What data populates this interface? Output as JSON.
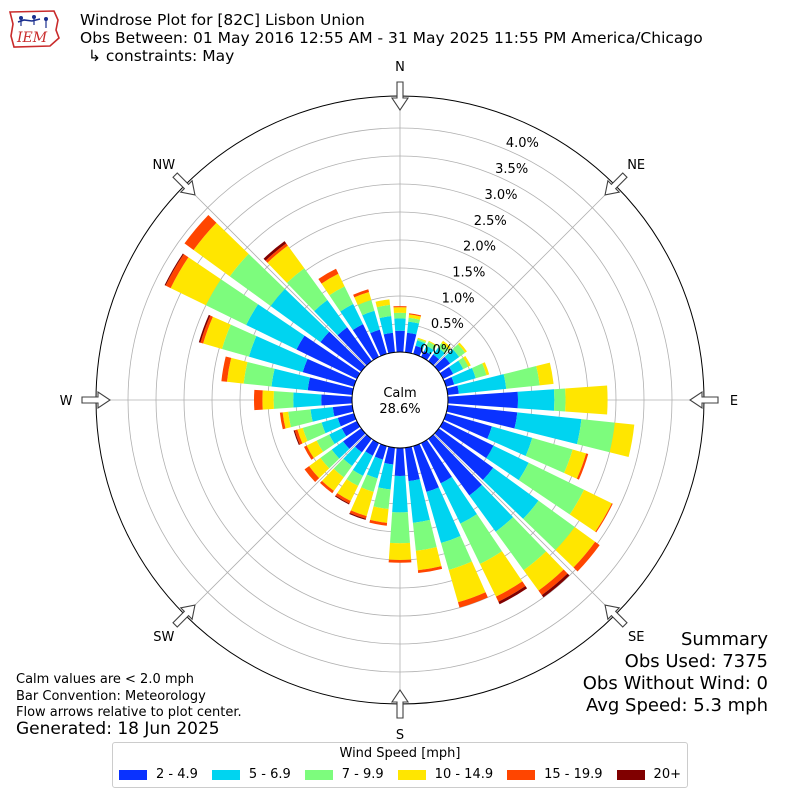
{
  "header": {
    "title": "Windrose Plot for [82C] Lisbon Union",
    "obs_range": "Obs Between: 01 May 2016 12:55 AM - 31 May 2025 11:55 PM America/Chicago",
    "constraints": "↳ constraints: May",
    "logo_text": "IEM"
  },
  "notes": {
    "calm": "Calm values are < 2.0 mph",
    "bar_convention": "Bar Convention: Meteorology",
    "flow": "Flow arrows relative to plot center.",
    "generated": "Generated: 18 Jun 2025"
  },
  "summary": {
    "title": "Summary",
    "obs_used": "Obs Used: 7375",
    "obs_without_wind": "Obs Without Wind: 0",
    "avg_speed": "Avg Speed: 5.3 mph"
  },
  "chart_data": {
    "type": "windrose",
    "calm_label": "Calm",
    "calm_value": "28.6%",
    "radial_ticks": [
      "0.0%",
      "0.5%",
      "1.0%",
      "1.5%",
      "2.0%",
      "2.5%",
      "3.0%",
      "3.5%",
      "4.0%"
    ],
    "radial_max": 4.0,
    "compass": [
      "N",
      "NE",
      "E",
      "SE",
      "S",
      "SW",
      "W",
      "NW"
    ],
    "legend_title": "Wind Speed [mph]",
    "bins": [
      {
        "label": "2 - 4.9",
        "color": "#0a32ff"
      },
      {
        "label": "5 - 6.9",
        "color": "#00d4f0"
      },
      {
        "label": "7 - 9.9",
        "color": "#7dfc7d"
      },
      {
        "label": "10 - 14.9",
        "color": "#ffe600"
      },
      {
        "label": "15 - 19.9",
        "color": "#ff4500"
      },
      {
        "label": "20+",
        "color": "#800000"
      }
    ],
    "direction_step_deg": 10,
    "directions_deg": [
      0,
      10,
      20,
      30,
      40,
      50,
      60,
      70,
      80,
      90,
      100,
      110,
      120,
      130,
      140,
      150,
      160,
      170,
      180,
      190,
      200,
      210,
      220,
      230,
      240,
      250,
      260,
      270,
      280,
      290,
      300,
      310,
      320,
      330,
      340,
      350
    ],
    "cumulative_percent": [
      [
        0.38,
        0.6,
        0.7,
        0.8,
        0.82,
        0.82
      ],
      [
        0.35,
        0.55,
        0.62,
        0.68,
        0.7,
        0.7
      ],
      [
        0.15,
        0.25,
        0.28,
        0.3,
        0.3,
        0.3
      ],
      [
        0.12,
        0.22,
        0.3,
        0.32,
        0.32,
        0.32
      ],
      [
        0.15,
        0.3,
        0.4,
        0.45,
        0.45,
        0.45
      ],
      [
        0.25,
        0.45,
        0.58,
        0.62,
        0.62,
        0.62
      ],
      [
        0.2,
        0.4,
        0.5,
        0.55,
        0.55,
        0.55
      ],
      [
        0.15,
        0.55,
        0.75,
        0.8,
        0.8,
        0.8
      ],
      [
        0.2,
        1.05,
        1.65,
        1.9,
        1.9,
        1.9
      ],
      [
        1.25,
        1.9,
        2.1,
        2.85,
        2.85,
        2.85
      ],
      [
        1.25,
        2.4,
        3.0,
        3.35,
        3.35,
        3.35
      ],
      [
        0.85,
        1.6,
        2.35,
        2.6,
        2.64,
        2.64
      ],
      [
        1.0,
        1.7,
        2.8,
        3.35,
        3.37,
        3.37
      ],
      [
        1.2,
        2.2,
        3.0,
        3.45,
        3.55,
        3.55
      ],
      [
        1.25,
        2.05,
        2.9,
        3.35,
        3.45,
        3.5
      ],
      [
        0.8,
        1.6,
        2.4,
        3.05,
        3.15,
        3.2
      ],
      [
        0.85,
        1.8,
        2.3,
        2.9,
        3.0,
        3.0
      ],
      [
        0.6,
        1.35,
        1.85,
        2.2,
        2.25,
        2.25
      ],
      [
        0.5,
        1.15,
        1.7,
        2.0,
        2.05,
        2.05
      ],
      [
        0.3,
        0.75,
        1.1,
        1.35,
        1.4,
        1.4
      ],
      [
        0.25,
        0.6,
        0.85,
        1.3,
        1.35,
        1.37
      ],
      [
        0.25,
        0.65,
        0.85,
        1.15,
        1.2,
        1.22
      ],
      [
        0.3,
        0.6,
        0.85,
        1.15,
        1.2,
        1.2
      ],
      [
        0.4,
        0.65,
        0.9,
        1.15,
        1.25,
        1.25
      ],
      [
        0.3,
        0.55,
        0.8,
        1.0,
        1.05,
        1.05
      ],
      [
        0.3,
        0.6,
        0.95,
        1.05,
        1.1,
        1.12
      ],
      [
        0.35,
        0.75,
        1.15,
        1.25,
        1.3,
        1.3
      ],
      [
        0.55,
        1.05,
        1.4,
        1.6,
        1.75,
        1.75
      ],
      [
        0.8,
        1.45,
        1.95,
        2.25,
        2.35,
        2.35
      ],
      [
        0.95,
        1.95,
        2.45,
        2.8,
        2.85,
        2.88
      ],
      [
        1.2,
        2.2,
        3.0,
        3.7,
        3.8,
        3.82
      ],
      [
        0.9,
        2.0,
        2.9,
        3.7,
        3.9,
        3.9
      ],
      [
        0.75,
        1.35,
        2.05,
        2.55,
        2.6,
        2.65
      ],
      [
        0.65,
        1.05,
        1.4,
        1.65,
        1.75,
        1.75
      ],
      [
        0.45,
        0.8,
        1.0,
        1.15,
        1.2,
        1.2
      ],
      [
        0.35,
        0.65,
        0.85,
        0.95,
        0.95,
        0.95
      ]
    ]
  }
}
